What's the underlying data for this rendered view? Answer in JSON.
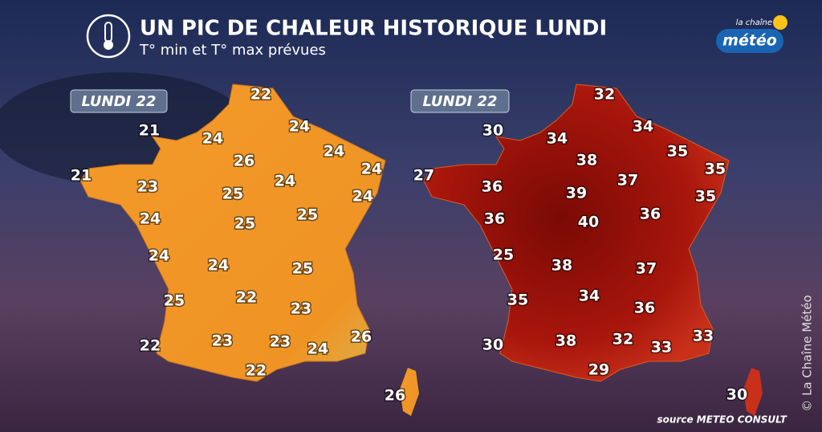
{
  "header": {
    "title": "UN PIC DE CHALEUR HISTORIQUE LUNDI",
    "subtitle": "T° min et T° max prévues"
  },
  "logo": {
    "line1": "la chaîne",
    "line2": "météo"
  },
  "maps": [
    {
      "label": "LUNDI 22",
      "temperatures": [
        22,
        24,
        21,
        24,
        24,
        26,
        24,
        21,
        23,
        25,
        24,
        24,
        24,
        25,
        25,
        24,
        24,
        25,
        25,
        22,
        23,
        26,
        22,
        23,
        23,
        24,
        22,
        26
      ]
    },
    {
      "label": "LUNDI 22",
      "temperatures": [
        32,
        30,
        34,
        34,
        38,
        35,
        35,
        27,
        36,
        37,
        39,
        35,
        36,
        40,
        36,
        25,
        38,
        37,
        35,
        34,
        36,
        30,
        38,
        32,
        33,
        33,
        29,
        30
      ]
    }
  ],
  "source": "source METEO CONSULT",
  "copyright": "© La Chaîne Météo"
}
